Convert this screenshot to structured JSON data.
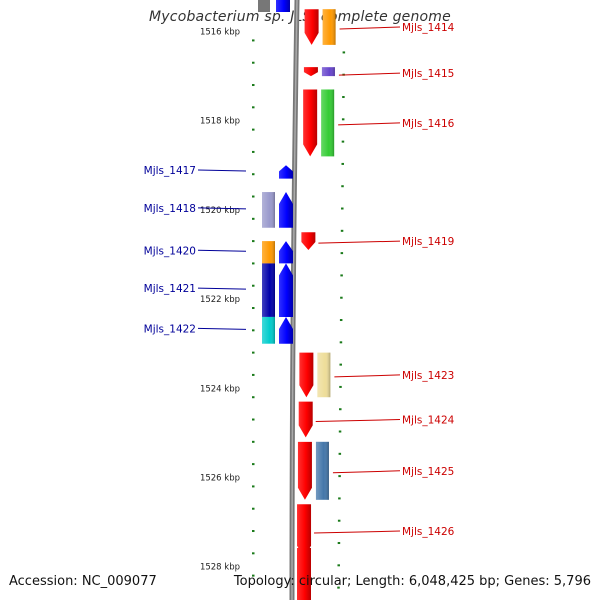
{
  "title": "Mycobacterium sp. JLS, complete genome",
  "footer": {
    "accession": "Accession: NC_009077",
    "topology": "Topology: circular; Length: 6,048,425 bp; Genes: 5,796"
  },
  "ruler": {
    "ticks": [
      {
        "label": "1516 kbp",
        "kbp": 1516
      },
      {
        "label": "1518 kbp",
        "kbp": 1518
      },
      {
        "label": "1520 kbp",
        "kbp": 1520
      },
      {
        "label": "1522 kbp",
        "kbp": 1522
      },
      {
        "label": "1524 kbp",
        "kbp": 1524
      },
      {
        "label": "1526 kbp",
        "kbp": 1526
      },
      {
        "label": "1528 kbp",
        "kbp": 1528
      }
    ]
  },
  "colors": {
    "forward_gene": "#ff0000",
    "reverse_gene": "#0000ff",
    "forward_label": "#cc0000",
    "reverse_label": "#000099",
    "backbone": "#777777",
    "ruler": "#1a7a1a"
  },
  "genes": {
    "forward": [
      {
        "label": "Mjls_1414",
        "start_kbp": 1515.5,
        "end_kbp": 1516.3,
        "cog_color": "#ff9900"
      },
      {
        "label": "Mjls_1415",
        "start_kbp": 1516.8,
        "end_kbp": 1517.0,
        "cog_color": "#6644cc"
      },
      {
        "label": "Mjls_1416",
        "start_kbp": 1517.3,
        "end_kbp": 1518.8,
        "cog_color": "#33cc33"
      },
      {
        "label": "Mjls_1419",
        "start_kbp": 1520.5,
        "end_kbp": 1520.9,
        "cog_color": ""
      },
      {
        "label": "Mjls_1423",
        "start_kbp": 1523.2,
        "end_kbp": 1524.2,
        "cog_color": "#eedd99"
      },
      {
        "label": "Mjls_1424",
        "start_kbp": 1524.3,
        "end_kbp": 1525.1,
        "cog_color": ""
      },
      {
        "label": "Mjls_1425",
        "start_kbp": 1525.2,
        "end_kbp": 1526.5,
        "cog_color": "#4477aa"
      },
      {
        "label": "Mjls_1426",
        "start_kbp": 1526.6,
        "end_kbp": 1527.8,
        "cog_color": ""
      }
    ],
    "reverse": [
      {
        "label": "Mjls_1417",
        "start_kbp": 1519.0,
        "end_kbp": 1519.3,
        "cog_color": ""
      },
      {
        "label": "Mjls_1418",
        "start_kbp": 1519.6,
        "end_kbp": 1520.4,
        "cog_color": "#9999cc"
      },
      {
        "label": "Mjls_1420",
        "start_kbp": 1520.7,
        "end_kbp": 1521.2,
        "cog_color": "#ff9900"
      },
      {
        "label": "Mjls_1421",
        "start_kbp": 1521.2,
        "end_kbp": 1522.4,
        "cog_color": "#0000aa"
      },
      {
        "label": "Mjls_1422",
        "start_kbp": 1522.4,
        "end_kbp": 1523.0,
        "cog_color": "#00cccc"
      }
    ]
  }
}
